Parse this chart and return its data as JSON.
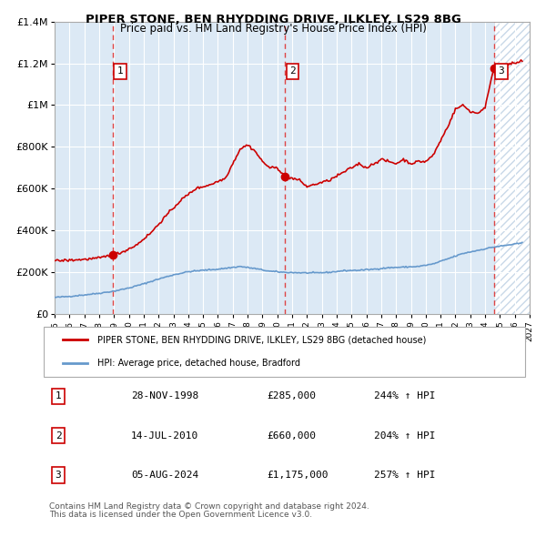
{
  "title": "PIPER STONE, BEN RHYDDING DRIVE, ILKLEY, LS29 8BG",
  "subtitle": "Price paid vs. HM Land Registry's House Price Index (HPI)",
  "sales": [
    {
      "date_dec": 1998.91,
      "price": 285000,
      "label": "1",
      "date_str": "28-NOV-1998"
    },
    {
      "date_dec": 2010.54,
      "price": 660000,
      "label": "2",
      "date_str": "14-JUL-2010"
    },
    {
      "date_dec": 2024.59,
      "price": 1175000,
      "label": "3",
      "date_str": "05-AUG-2024"
    }
  ],
  "hpi_pct": [
    {
      "label": "1",
      "pct": "244%",
      "dir": "↑"
    },
    {
      "label": "2",
      "pct": "204%",
      "dir": "↑"
    },
    {
      "label": "3",
      "pct": "257%",
      "dir": "↑"
    }
  ],
  "legend_house_label": "PIPER STONE, BEN RHYDDING DRIVE, ILKLEY, LS29 8BG (detached house)",
  "legend_hpi_label": "HPI: Average price, detached house, Bradford",
  "footnote1": "Contains HM Land Registry data © Crown copyright and database right 2024.",
  "footnote2": "This data is licensed under the Open Government Licence v3.0.",
  "xmin": 1995,
  "xmax": 2027,
  "ymin": 0,
  "ymax": 1400000,
  "house_color": "#cc0000",
  "hpi_color": "#6699cc",
  "bg_color": "#dce9f5",
  "hatch_color": "#c8d8e8",
  "grid_color": "#ffffff",
  "dashed_line_color": "#dd4444"
}
